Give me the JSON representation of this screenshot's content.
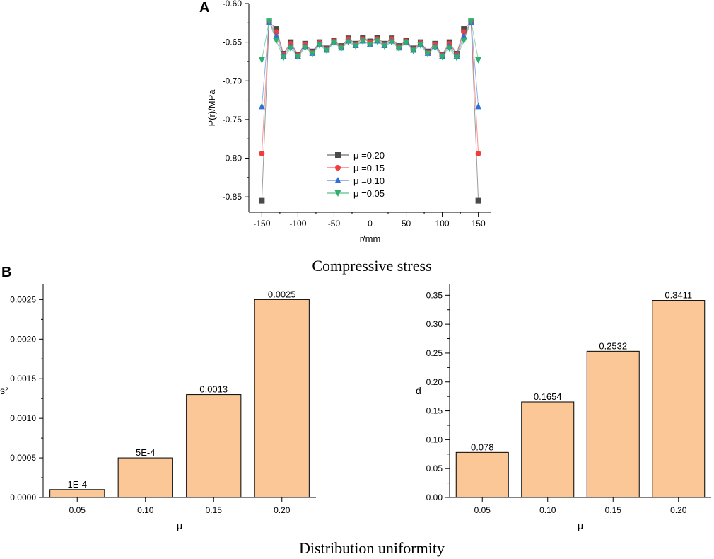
{
  "panel_a_label": "A",
  "panel_b_label": "B",
  "caption_a": "Compressive stress",
  "caption_b": "Distribution uniformity",
  "colors": {
    "mu020": "#4a4a4a",
    "mu015": "#ef3e3e",
    "mu010": "#2f6fd6",
    "mu005": "#2fb06e",
    "bar_fill": "#fcc797",
    "axis": "#000000"
  },
  "chart_data": [
    {
      "type": "line",
      "title": "",
      "xlabel": "r/mm",
      "ylabel": "P(r)/MPa",
      "xlim": [
        -168,
        168
      ],
      "ylim": [
        -0.87,
        -0.6
      ],
      "xticks": [
        -150,
        -100,
        -50,
        0,
        50,
        100,
        150
      ],
      "xtick_labels": [
        "-150",
        "-100",
        "-50",
        "0",
        "50",
        "100",
        "150"
      ],
      "yticks": [
        -0.85,
        -0.8,
        -0.75,
        -0.7,
        -0.65,
        -0.6
      ],
      "ytick_labels": [
        "-0.85",
        "-0.80",
        "-0.75",
        "-0.70",
        "-0.65",
        "-0.60"
      ],
      "x": [
        -150,
        -140,
        -130,
        -120,
        -110,
        -100,
        -90,
        -80,
        -70,
        -60,
        -50,
        -40,
        -30,
        -20,
        -10,
        0,
        10,
        20,
        30,
        40,
        50,
        60,
        70,
        80,
        90,
        100,
        110,
        120,
        130,
        140,
        150
      ],
      "series": [
        {
          "name": "μ =0.20",
          "marker": "square",
          "values": [
            -0.855,
            -0.624,
            -0.633,
            -0.665,
            -0.65,
            -0.666,
            -0.652,
            -0.662,
            -0.65,
            -0.658,
            -0.648,
            -0.655,
            -0.645,
            -0.652,
            -0.644,
            -0.649,
            -0.644,
            -0.652,
            -0.645,
            -0.655,
            -0.648,
            -0.658,
            -0.65,
            -0.662,
            -0.652,
            -0.666,
            -0.65,
            -0.665,
            -0.633,
            -0.624,
            -0.855
          ]
        },
        {
          "name": "μ =0.15",
          "marker": "circle",
          "values": [
            -0.794,
            -0.625,
            -0.637,
            -0.666,
            -0.652,
            -0.667,
            -0.653,
            -0.663,
            -0.651,
            -0.659,
            -0.649,
            -0.656,
            -0.646,
            -0.653,
            -0.646,
            -0.65,
            -0.646,
            -0.653,
            -0.646,
            -0.656,
            -0.649,
            -0.659,
            -0.651,
            -0.663,
            -0.653,
            -0.667,
            -0.652,
            -0.666,
            -0.637,
            -0.625,
            -0.794
          ]
        },
        {
          "name": "μ =0.10",
          "marker": "triangle-up",
          "values": [
            -0.733,
            -0.624,
            -0.642,
            -0.668,
            -0.655,
            -0.668,
            -0.655,
            -0.664,
            -0.652,
            -0.66,
            -0.65,
            -0.657,
            -0.648,
            -0.654,
            -0.648,
            -0.652,
            -0.648,
            -0.654,
            -0.648,
            -0.657,
            -0.65,
            -0.66,
            -0.652,
            -0.664,
            -0.655,
            -0.668,
            -0.655,
            -0.668,
            -0.642,
            -0.624,
            -0.733
          ]
        },
        {
          "name": "μ =0.05",
          "marker": "triangle-down",
          "values": [
            -0.673,
            -0.623,
            -0.648,
            -0.67,
            -0.658,
            -0.669,
            -0.657,
            -0.665,
            -0.654,
            -0.661,
            -0.651,
            -0.658,
            -0.65,
            -0.655,
            -0.649,
            -0.653,
            -0.649,
            -0.655,
            -0.65,
            -0.658,
            -0.651,
            -0.661,
            -0.654,
            -0.665,
            -0.657,
            -0.669,
            -0.658,
            -0.67,
            -0.648,
            -0.623,
            -0.673
          ]
        }
      ]
    },
    {
      "type": "bar",
      "title": "",
      "xlabel": "μ",
      "ylabel": "s²",
      "ylim": [
        0,
        0.0027
      ],
      "categories": [
        "0.05",
        "0.10",
        "0.15",
        "0.20"
      ],
      "values": [
        0.0001,
        0.0005,
        0.0013,
        0.0025
      ],
      "value_labels": [
        "1E-4",
        "5E-4",
        "0.0013",
        "0.0025"
      ],
      "yticks": [
        0,
        0.0005,
        0.001,
        0.0015,
        0.002,
        0.0025
      ],
      "ytick_labels": [
        "0.0000",
        "0.0005",
        "0.0010",
        "0.0015",
        "0.0020",
        "0.0025"
      ]
    },
    {
      "type": "bar",
      "title": "",
      "xlabel": "μ",
      "ylabel": "d",
      "ylim": [
        0,
        0.37
      ],
      "categories": [
        "0.05",
        "0.10",
        "0.15",
        "0.20"
      ],
      "values": [
        0.078,
        0.1654,
        0.2532,
        0.3411
      ],
      "value_labels": [
        "0.078",
        "0.1654",
        "0.2532",
        "0.3411"
      ],
      "yticks": [
        0,
        0.05,
        0.1,
        0.15,
        0.2,
        0.25,
        0.3,
        0.35
      ],
      "ytick_labels": [
        "0.00",
        "0.05",
        "0.10",
        "0.15",
        "0.20",
        "0.25",
        "0.30",
        "0.35"
      ]
    }
  ]
}
